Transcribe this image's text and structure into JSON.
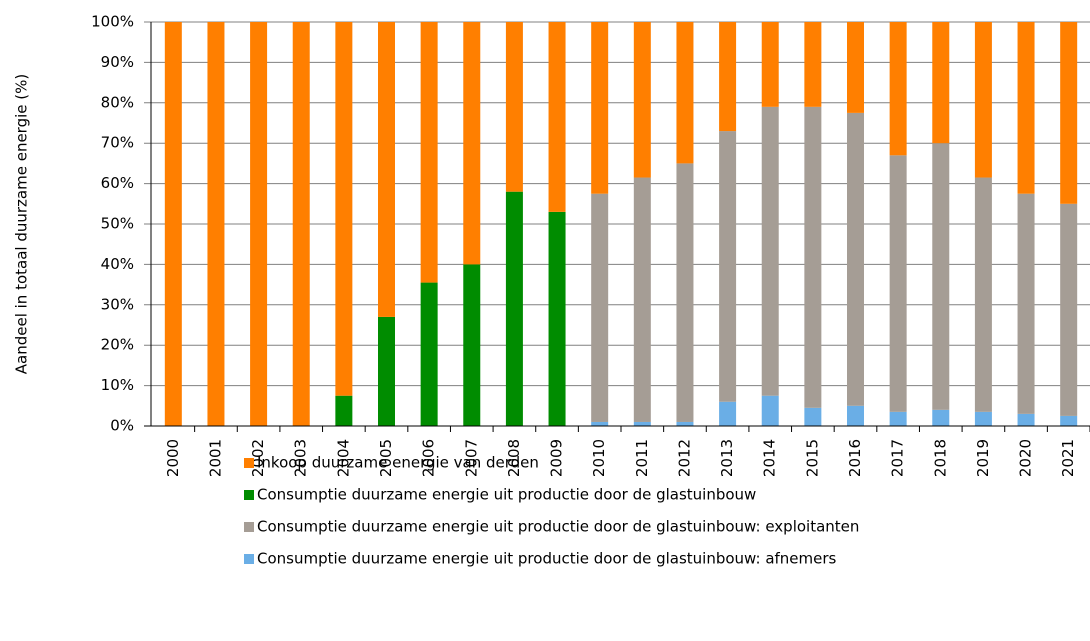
{
  "chart_data": {
    "type": "stacked_bar",
    "ylabel": "Aandeel in totaal duurzame energie (%)",
    "categories": [
      "2000",
      "2001",
      "2002",
      "2003",
      "2004",
      "2005",
      "2006",
      "2007",
      "2008",
      "2009",
      "2010",
      "2011",
      "2012",
      "2013",
      "2014",
      "2015",
      "2016",
      "2017",
      "2018",
      "2019",
      "2020",
      "2021"
    ],
    "series": [
      {
        "name": "Inkoop duurzame energie van derden",
        "color": "#ff7f00",
        "values": [
          100,
          100,
          100,
          100,
          92.5,
          73,
          64.5,
          60,
          42,
          47,
          42.5,
          38.5,
          35,
          27,
          21,
          21,
          22.5,
          33,
          30,
          38.5,
          42.5,
          45
        ]
      },
      {
        "name": "Consumptie duurzame energie uit productie door de glastuinbouw",
        "color": "#008c00",
        "values": [
          0,
          0,
          0,
          0,
          7.5,
          27,
          35.5,
          40,
          58,
          53,
          0,
          0,
          0,
          0,
          0,
          0,
          0,
          0,
          0,
          0,
          0,
          0
        ]
      },
      {
        "name": "Consumptie duurzame energie uit productie door de glastuinbouw: exploitanten",
        "color": "#a59d95",
        "values": [
          0,
          0,
          0,
          0,
          0,
          0,
          0,
          0,
          0,
          0,
          56.5,
          60.5,
          64,
          67,
          71.5,
          74.5,
          72.5,
          63.5,
          66,
          58,
          54.5,
          52.5
        ]
      },
      {
        "name": "Consumptie duurzame energie uit productie door de glastuinbouw: afnemers",
        "color": "#6aaee6",
        "values": [
          0,
          0,
          0,
          0,
          0,
          0,
          0,
          0,
          0,
          0,
          1,
          1,
          1,
          6,
          7.5,
          4.5,
          5,
          3.5,
          4,
          3.5,
          3,
          2.5
        ]
      }
    ],
    "ylim": [
      0,
      100
    ],
    "yticks": [
      {
        "value": 0,
        "label": "0%"
      },
      {
        "value": 10,
        "label": "10%"
      },
      {
        "value": 20,
        "label": "20%"
      },
      {
        "value": 30,
        "label": "30%"
      },
      {
        "value": 40,
        "label": "40%"
      },
      {
        "value": 50,
        "label": "50%"
      },
      {
        "value": 60,
        "label": "60%"
      },
      {
        "value": 70,
        "label": "70%"
      },
      {
        "value": 80,
        "label": "80%"
      },
      {
        "value": 90,
        "label": "90%"
      },
      {
        "value": 100,
        "label": "100%"
      }
    ],
    "grid": true
  }
}
